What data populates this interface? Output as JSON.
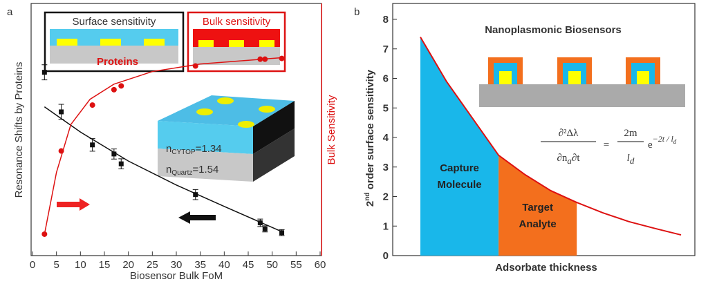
{
  "chart_data": [
    {
      "type": "scatter",
      "panel_label": "a",
      "xlabel": "Biosensor Bulk FoM",
      "ylabel": "Resonance Shifts by Proteins",
      "y2label": "Bulk Sensitivity",
      "xlim": [
        0,
        60
      ],
      "xticks": [
        0,
        5,
        10,
        15,
        20,
        25,
        30,
        35,
        40,
        45,
        50,
        55,
        60
      ],
      "ylim": [
        0,
        10
      ],
      "y2lim": [
        0,
        10
      ],
      "series": [
        {
          "color": "#111111",
          "marker": "square",
          "x": [
            2.5,
            6,
            12.5,
            17,
            18.5,
            34,
            47.5,
            48.5,
            52
          ],
          "values": [
            7.27,
            5.7,
            4.39,
            4.03,
            3.64,
            2.42,
            1.3,
            1.06,
            0.91
          ],
          "errors": [
            0.3,
            0.3,
            0.25,
            0.2,
            0.2,
            0.2,
            0.15,
            0.12,
            0.12
          ]
        },
        {
          "color": "#dd1111",
          "marker": "circle",
          "axis": "y2",
          "x": [
            2.5,
            6,
            12.5,
            17,
            18.5,
            34,
            47.5,
            48.5,
            52
          ],
          "values": [
            0.85,
            4.15,
            5.97,
            6.58,
            6.73,
            7.52,
            7.79,
            7.79,
            7.82
          ]
        },
        {
          "color": "#111111",
          "marker": "line",
          "x": [
            2.5,
            10,
            20,
            30,
            40,
            52
          ],
          "values": [
            5.9,
            4.9,
            3.75,
            2.8,
            1.95,
            0.95
          ]
        },
        {
          "color": "#dd1111",
          "marker": "line",
          "axis": "y2",
          "x": [
            2.5,
            5,
            8,
            12,
            17,
            25,
            35,
            52
          ],
          "values": [
            0.85,
            3.3,
            5.2,
            6.2,
            6.8,
            7.3,
            7.6,
            7.85
          ]
        }
      ],
      "annotations": {
        "surface": "Surface sensitivity",
        "proteins": "Proteins",
        "bulk": "Bulk sensitivity",
        "n_cytop": {
          "n": "n",
          "sub": "CYTOP",
          "rest": "=1.34"
        },
        "n_quartz": {
          "n": "n",
          "sub": "Quartz",
          "rest": "=1.54"
        }
      }
    },
    {
      "type": "area",
      "panel_label": "b",
      "title": "Nanoplasmonic Biosensors",
      "xlabel": "Adsorbate thickness",
      "ylabel": {
        "num": "2",
        "sup": "nd",
        "rest": " order surface sensitivity"
      },
      "xlim": [
        0,
        10
      ],
      "ylim": [
        0,
        8
      ],
      "yticks": [
        0,
        1,
        2,
        3,
        4,
        5,
        6,
        7,
        8
      ],
      "x": [
        0,
        1,
        2,
        3,
        4,
        5,
        6,
        7,
        8,
        9,
        10
      ],
      "values": [
        7.4,
        5.9,
        4.65,
        3.4,
        2.75,
        2.2,
        1.8,
        1.45,
        1.15,
        0.92,
        0.7
      ],
      "color": "#dd1111",
      "regions": [
        {
          "label_lines": [
            "Capture",
            "Molecule"
          ],
          "x_range": [
            0,
            3
          ],
          "color": "#19b7ea"
        },
        {
          "label_lines": [
            "Target",
            "Analyte"
          ],
          "x_range": [
            3,
            6
          ],
          "color": "#f36f1d"
        }
      ],
      "equation": {
        "num1": "∂²Δλ",
        "den1": "∂n",
        "den1sub": "a",
        "den1b": "∂t",
        "eq": "=",
        "num2": "2m",
        "den2": "l",
        "den2sub": "d",
        "e": "e",
        "sup": "−2t / l",
        "supsub": "d"
      }
    }
  ]
}
